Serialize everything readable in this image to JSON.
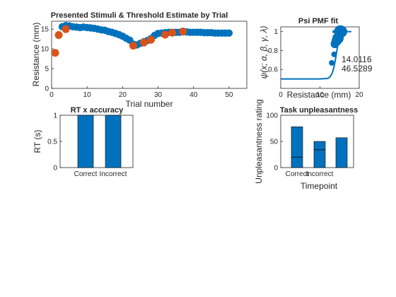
{
  "colors": {
    "blue": "#0072BD",
    "orange": "#D95319",
    "axis": "#262626"
  },
  "chart_data": [
    {
      "type": "scatter",
      "title": "Presented Stimuli & Threshold Estimate by Trial",
      "xlabel": "Trial number",
      "ylabel": "Resistance (mm)",
      "xlim": [
        0,
        55
      ],
      "ylim": [
        0,
        17
      ],
      "xticks": [
        0,
        10,
        20,
        30,
        40,
        50
      ],
      "yticks": [
        0,
        5,
        10,
        15
      ],
      "series": [
        {
          "color": "#0072BD",
          "x": [
            1,
            2,
            3,
            4,
            5,
            6,
            7,
            8,
            9,
            10,
            11,
            12,
            13,
            14,
            15,
            16,
            17,
            18,
            19,
            20,
            21,
            22,
            23,
            24,
            25,
            26,
            27,
            28,
            29,
            30,
            31,
            32,
            33,
            34,
            35,
            36,
            37,
            38,
            39,
            40,
            41,
            42,
            43,
            44,
            45,
            46,
            47,
            48,
            49,
            50
          ],
          "y": [
            9,
            13.5,
            15.6,
            15.9,
            15.8,
            15.6,
            15.5,
            15.4,
            15.5,
            15.4,
            15.3,
            15.2,
            15,
            14.8,
            14.7,
            14.4,
            14.2,
            13.9,
            13.6,
            13.2,
            12.7,
            12.2,
            11.2,
            11,
            11.4,
            11.8,
            12.1,
            12.6,
            13.4,
            13.9,
            14,
            14.1,
            14.2,
            14.2,
            14.2,
            14.2,
            14.3,
            14.3,
            14.2,
            14.2,
            14.2,
            14.2,
            14.1,
            14.1,
            14.1,
            14,
            14,
            14,
            14,
            14
          ]
        },
        {
          "color": "#D95319",
          "x": [
            1,
            2,
            4,
            23,
            26,
            28,
            32,
            34,
            37
          ],
          "y": [
            9,
            13.5,
            15,
            10.8,
            11.6,
            12.3,
            13.6,
            14.1,
            14.4
          ]
        }
      ]
    },
    {
      "type": "scatter",
      "title": "Psi PMF fit",
      "xlabel": "Resistance (mm)",
      "ylabel": "ψ(x; α, β, γ, λ)",
      "xlim": [
        0,
        20
      ],
      "ylim": [
        0.4,
        1.05
      ],
      "xticks": [
        0,
        10,
        20
      ],
      "yticks": [
        0.6,
        0.8,
        1
      ],
      "annotations": {
        "alpha": "14.0116",
        "beta": "46.5289"
      },
      "curve": {
        "x": [
          0,
          5,
          10,
          12,
          12.5,
          13,
          13.4,
          13.7,
          14,
          14.3,
          14.6,
          15,
          15.5,
          16,
          17,
          18
        ],
        "y": [
          0.5,
          0.5,
          0.5,
          0.505,
          0.52,
          0.55,
          0.6,
          0.65,
          0.72,
          0.8,
          0.87,
          0.93,
          0.97,
          0.99,
          1,
          1
        ]
      },
      "points": {
        "x": [
          13,
          13.6,
          13.8,
          14.2,
          14.6,
          14.9,
          15.2,
          15.5,
          15.6,
          15.8,
          13.5,
          14.1
        ],
        "y": [
          0.67,
          0.76,
          0.87,
          0.9,
          0.93,
          0.97,
          1.0,
          1.0,
          1.0,
          0.96,
          1.0,
          1.0
        ],
        "size": [
          4,
          4,
          6,
          7,
          8,
          6,
          9,
          8,
          2,
          2,
          2,
          2
        ]
      }
    },
    {
      "type": "bar",
      "title": "RT x accuracy",
      "xlabel": "",
      "ylabel": "RT (s)",
      "categories": [
        "Correct",
        "Incorrect"
      ],
      "values": [
        1,
        1
      ],
      "ylim": [
        0,
        1
      ],
      "yticks": [
        0,
        0.5,
        1
      ],
      "ytick_labels": [
        "0",
        "0.5",
        "1"
      ]
    },
    {
      "type": "bar",
      "title": "Task unpleasantness",
      "xlabel": "Timepoint",
      "ylabel": "Unpleasantness rating",
      "categories": [
        "Correct",
        "Incorrect",
        ""
      ],
      "values": [
        78,
        50,
        57
      ],
      "inner_lines": [
        20,
        34,
        null
      ],
      "ylim": [
        0,
        100
      ],
      "yticks": [
        0,
        50,
        100
      ]
    }
  ]
}
